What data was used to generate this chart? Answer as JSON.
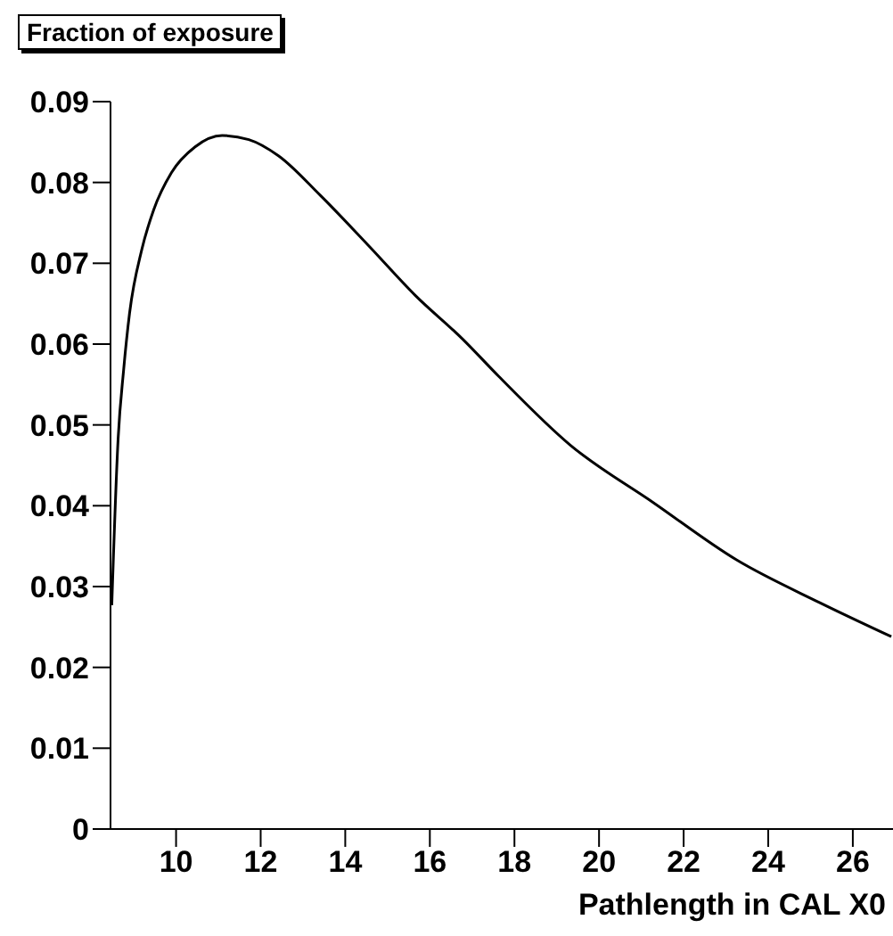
{
  "chart_data": {
    "type": "line",
    "title": "Fraction of exposure",
    "xlabel": "Pathlength in CAL  X0",
    "x": [
      8.48,
      8.63,
      8.76,
      8.9,
      9.19,
      9.47,
      9.89,
      10.45,
      11.09,
      11.72,
      12.42,
      13.41,
      14.53,
      15.66,
      16.78,
      17.63,
      19.32,
      21.28,
      23.25,
      25.22,
      26.91
    ],
    "series": [
      {
        "color": "#000000",
        "values": [
          0.0277,
          0.0483,
          0.0568,
          0.0638,
          0.0717,
          0.0766,
          0.0812,
          0.0844,
          0.0858,
          0.0853,
          0.0833,
          0.0784,
          0.0723,
          0.066,
          0.0606,
          0.056,
          0.0475,
          0.0404,
          0.0333,
          0.028,
          0.0238
        ]
      }
    ],
    "xlim": [
      8.45,
      26.95
    ],
    "xticks": [
      10,
      12,
      14,
      16,
      18,
      20,
      22,
      24,
      26
    ],
    "ylim": [
      0,
      0.09
    ],
    "yticks": [
      0,
      0.01,
      0.02,
      0.03,
      0.04,
      0.05,
      0.06,
      0.07,
      0.08,
      0.09
    ],
    "grid": false,
    "legend": false,
    "marker": "none",
    "line_style": "solid"
  }
}
